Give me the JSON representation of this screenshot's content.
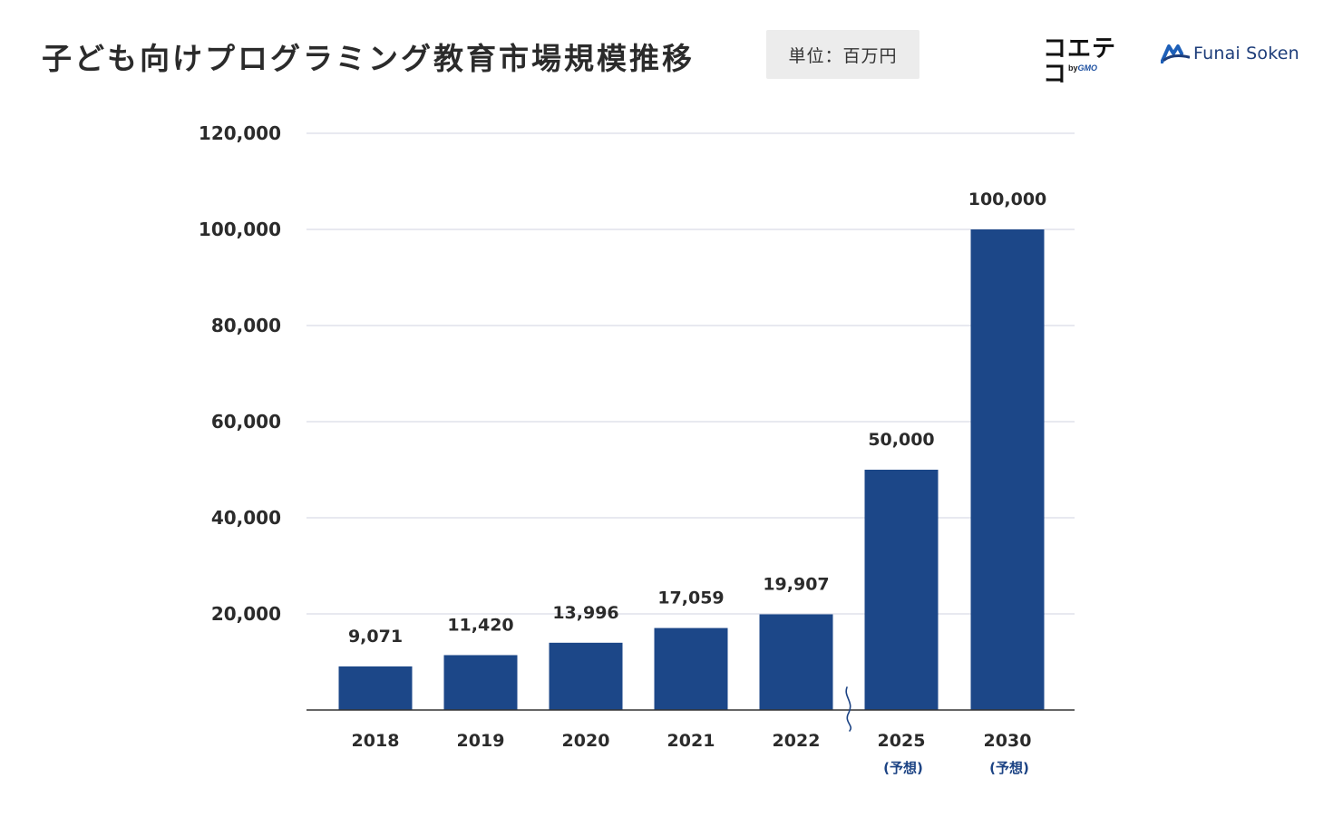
{
  "header": {
    "title": "子ども向けプログラミング教育市場規模推移",
    "unit": "単位：百万円",
    "logos": {
      "primary_main": "コエテコ",
      "primary_sub_prefix": "by",
      "primary_sub_brand": "GMO",
      "secondary": "Funai Soken"
    }
  },
  "colors": {
    "bar": "#1c4788",
    "grid": "#d9dce8",
    "axis": "#333333",
    "note": "#1c4384",
    "break_mark": "#1c4384"
  },
  "chart_data": {
    "type": "bar",
    "title": "子ども向けプログラミング教育市場規模推移",
    "unit": "単位：百万円",
    "categories": [
      "2018",
      "2019",
      "2020",
      "2021",
      "2022",
      "2025",
      "2030"
    ],
    "category_notes": [
      "",
      "",
      "",
      "",
      "",
      "(予想)",
      "(予想)"
    ],
    "values": [
      9071,
      11420,
      13996,
      17059,
      19907,
      50000,
      100000
    ],
    "data_labels": [
      "9,071",
      "11,420",
      "13,996",
      "17,059",
      "19,907",
      "50,000",
      "100,000"
    ],
    "ylim": [
      0,
      120000
    ],
    "yticks": [
      20000,
      40000,
      60000,
      80000,
      100000,
      120000
    ],
    "ytick_labels": [
      "20,000",
      "40,000",
      "60,000",
      "80,000",
      "100,000",
      "120,000"
    ],
    "grid": true,
    "axis_break_between": [
      "2022",
      "2025"
    ]
  }
}
